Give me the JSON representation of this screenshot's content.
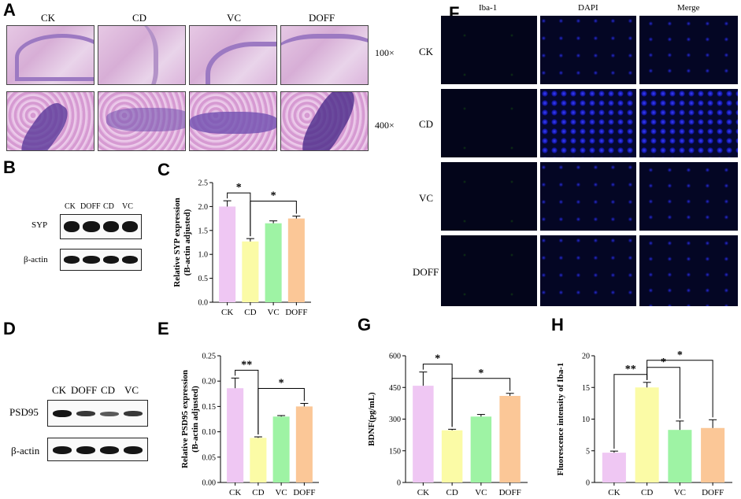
{
  "panels": {
    "A": "A",
    "B": "B",
    "C": "C",
    "D": "D",
    "E": "E",
    "F": "F",
    "G": "G",
    "H": "H"
  },
  "panelA": {
    "groups": [
      "CK",
      "CD",
      "VC",
      "DOFF"
    ],
    "magnifications": [
      "100×",
      "400×"
    ]
  },
  "panelF": {
    "channels": [
      "Iba-1",
      "DAPI",
      "Merge"
    ],
    "rows": [
      "CK",
      "CD",
      "VC",
      "DOFF"
    ]
  },
  "panelB": {
    "lanes": [
      "CK",
      "DOFF",
      "CD",
      "VC"
    ],
    "proteins": [
      "SYP",
      "β-actin"
    ]
  },
  "panelD": {
    "lanes": [
      "CK",
      "DOFF",
      "CD",
      "VC"
    ],
    "proteins": [
      "PSD95",
      "β-actin"
    ]
  },
  "colors": {
    "CK": "#efc7f3",
    "CD": "#fbfba6",
    "VC": "#9ef3a4",
    "DOFF": "#fbc797"
  },
  "chart_data": [
    {
      "id": "C",
      "type": "bar",
      "categories": [
        "CK",
        "CD",
        "VC",
        "DOFF"
      ],
      "values": [
        2.0,
        1.27,
        1.65,
        1.75
      ],
      "errors": [
        0.12,
        0.06,
        0.05,
        0.05
      ],
      "ylabel": "Relative SYP expression",
      "ylabel2": "(Β-actin adjusted)",
      "ylim": [
        0,
        2.5
      ],
      "yticks": [
        "0.0",
        "0.5",
        "1.0",
        "1.5",
        "2.0",
        "2.5"
      ],
      "significance": [
        {
          "from": 0,
          "to": 1,
          "label": "*"
        },
        {
          "from": 1,
          "to": 3,
          "label": "*"
        }
      ]
    },
    {
      "id": "E",
      "type": "bar",
      "categories": [
        "CK",
        "CD",
        "VC",
        "DOFF"
      ],
      "values": [
        0.186,
        0.088,
        0.13,
        0.15
      ],
      "errors": [
        0.02,
        0.002,
        0.002,
        0.006
      ],
      "ylabel": "Relative PSD95 expression",
      "ylabel2": "(Β-actin adjusted)",
      "ylim": [
        0,
        0.25
      ],
      "yticks": [
        "0.00",
        "0.05",
        "0.10",
        "0.15",
        "0.20",
        "0.25"
      ],
      "significance": [
        {
          "from": 0,
          "to": 1,
          "label": "**"
        },
        {
          "from": 1,
          "to": 3,
          "label": "*"
        }
      ]
    },
    {
      "id": "G",
      "type": "bar",
      "categories": [
        "CK",
        "CD",
        "VC",
        "DOFF"
      ],
      "values": [
        458,
        247,
        312,
        410
      ],
      "errors": [
        65,
        5,
        10,
        12
      ],
      "ylabel": "BDNF(pg/mL)",
      "ylabel2": "",
      "ylim": [
        0,
        600
      ],
      "yticks": [
        "0",
        "150",
        "300",
        "450",
        "600"
      ],
      "significance": [
        {
          "from": 0,
          "to": 1,
          "label": "*"
        },
        {
          "from": 1,
          "to": 3,
          "label": "*"
        }
      ]
    },
    {
      "id": "H",
      "type": "bar",
      "categories": [
        "CK",
        "CD",
        "VC",
        "DOFF"
      ],
      "values": [
        4.7,
        15.0,
        8.3,
        8.6
      ],
      "errors": [
        0.25,
        0.8,
        1.4,
        1.3
      ],
      "ylabel": "Fluorescence intensity of Iba-1",
      "ylabel2": "",
      "ylim": [
        0,
        20
      ],
      "yticks": [
        "0",
        "5",
        "10",
        "15",
        "20"
      ],
      "significance": [
        {
          "from": 0,
          "to": 1,
          "label": "**"
        },
        {
          "from": 1,
          "to": 2,
          "label": "*"
        },
        {
          "from": 1,
          "to": 3,
          "label": "*"
        }
      ]
    }
  ]
}
